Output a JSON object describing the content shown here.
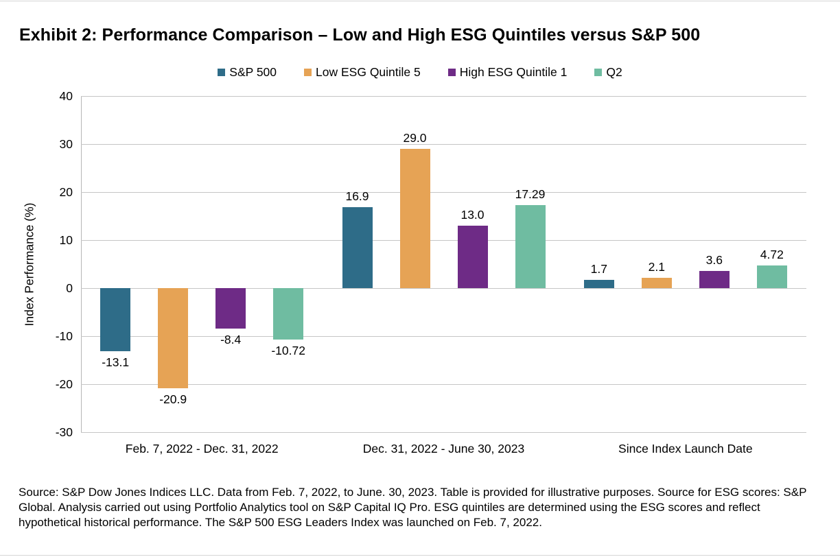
{
  "page": {
    "source_note": "Source: S&P Dow Jones Indices LLC. Data from Feb. 7, 2022, to June. 30, 2023. Table is provided for illustrative purposes. Source for ESG scores: S&P Global. Analysis carried out using Portfolio Analytics tool on S&P Capital IQ Pro. ESG quintiles are determined using the ESG scores and reflect hypothetical historical performance. The S&P 500 ESG Leaders Index was launched on Feb. 7, 2022."
  },
  "chart_data": {
    "type": "bar",
    "title": "Exhibit 2: Performance Comparison – Low and High ESG Quintiles versus S&P 500",
    "xlabel": "",
    "ylabel": "Index Performance (%)",
    "ylim": [
      -30,
      40
    ],
    "yticks": [
      40,
      30,
      20,
      10,
      0,
      -10,
      -20,
      -30
    ],
    "grid": true,
    "legend_position": "top",
    "categories": [
      "Feb. 7, 2022 - Dec. 31, 2022",
      "Dec. 31, 2022 - June 30, 2023",
      "Since Index Launch Date"
    ],
    "series": [
      {
        "name": "S&P 500",
        "color": "#2e6c88",
        "values": [
          -13.1,
          16.9,
          1.7
        ],
        "labels": [
          "-13.1",
          "16.9",
          "1.7"
        ]
      },
      {
        "name": "Low ESG Quintile 5",
        "color": "#e6a355",
        "values": [
          -20.9,
          29.0,
          2.1
        ],
        "labels": [
          "-20.9",
          "29.0",
          "2.1"
        ]
      },
      {
        "name": "High ESG Quintile 1",
        "color": "#6e2b86",
        "values": [
          -8.4,
          13.0,
          3.6
        ],
        "labels": [
          "-8.4",
          "13.0",
          "3.6"
        ]
      },
      {
        "name": "Q2",
        "color": "#6fbca1",
        "values": [
          -10.72,
          17.29,
          4.72
        ],
        "labels": [
          "-10.72",
          "17.29",
          "4.72"
        ]
      }
    ]
  },
  "colors": {
    "grid": "#c5c5c5",
    "axis": "#b5b5b5",
    "text": "#000000",
    "rule": "#d5d5d5"
  }
}
